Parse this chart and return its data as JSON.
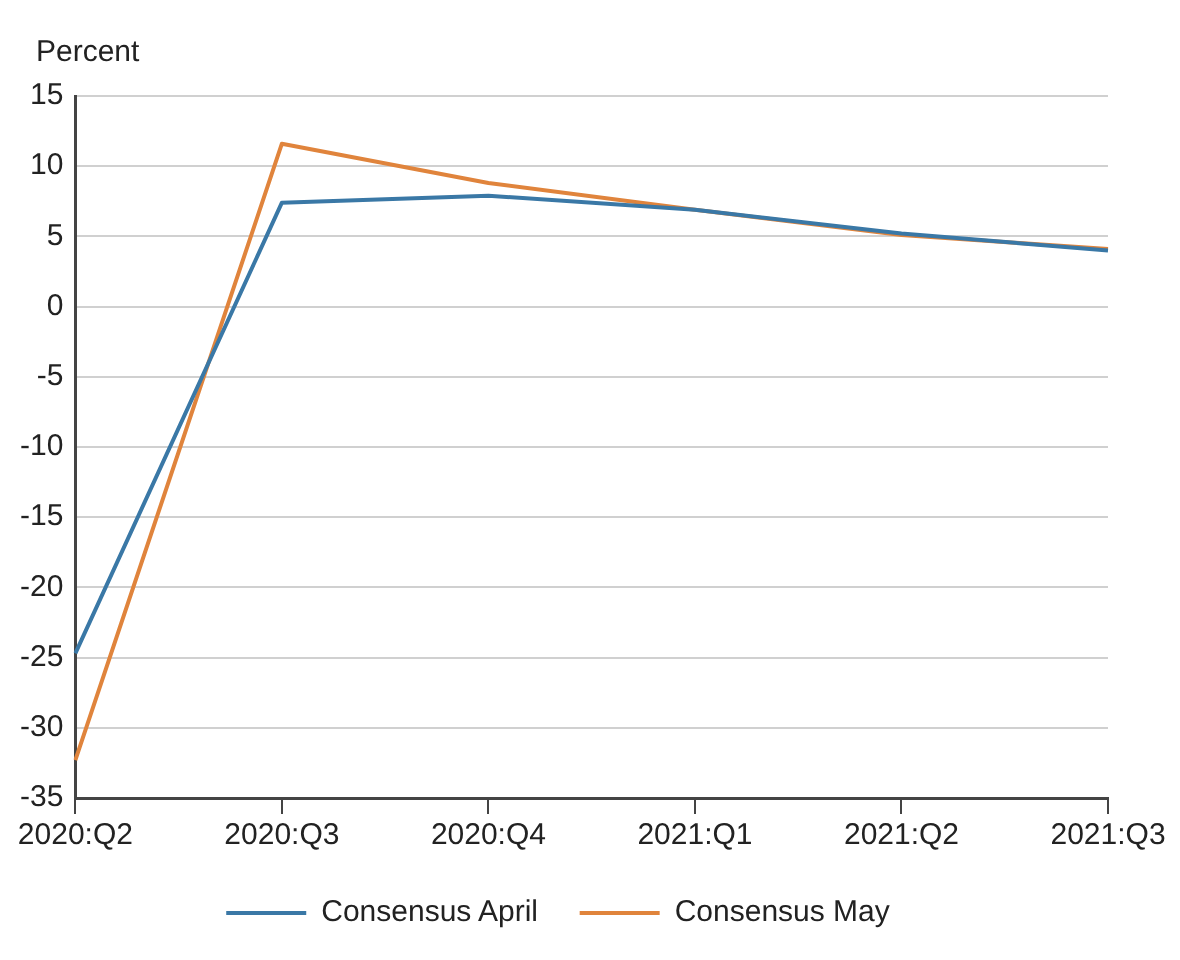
{
  "chart_data": {
    "type": "line",
    "ylabel": "Percent",
    "categories": [
      "2020:Q2",
      "2020:Q3",
      "2020:Q4",
      "2021:Q1",
      "2021:Q2",
      "2021:Q3"
    ],
    "series": [
      {
        "name": "Consensus April",
        "color": "#3a78a6",
        "values": [
          -24.7,
          7.4,
          7.9,
          6.9,
          5.2,
          4.0
        ]
      },
      {
        "name": "Consensus May",
        "color": "#e0843c",
        "values": [
          -32.3,
          11.6,
          8.8,
          6.9,
          5.1,
          4.1
        ]
      }
    ],
    "ylim": [
      -35,
      15
    ],
    "yticks": [
      -35,
      -30,
      -25,
      -20,
      -15,
      -10,
      -5,
      0,
      5,
      10,
      15
    ],
    "grid": "y",
    "legend": "bottom",
    "marker": "none",
    "line_style": "solid"
  }
}
